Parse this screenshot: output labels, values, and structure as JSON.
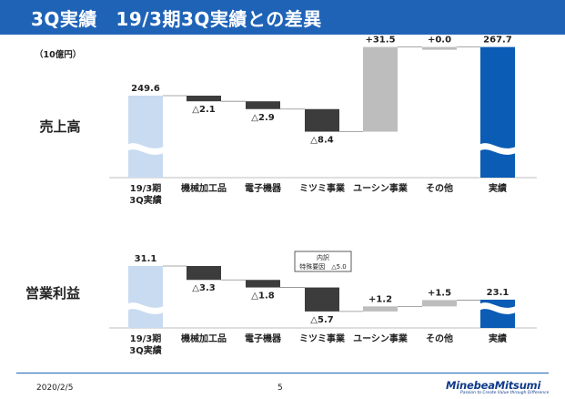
{
  "header": {
    "title": "3Q実績　19/3期3Q実績との差異"
  },
  "unit_label": "（10億円）",
  "footer": {
    "date": "2020/2/5",
    "page": "5"
  },
  "logo": {
    "name": "MinebeaMitsumi",
    "tagline": "Passion to Create Value through Difference"
  },
  "colors": {
    "title_bar": "#1f63b7",
    "base_bar": "#c9dbf1",
    "actual_bar": "#0a5cb5",
    "negative": "#3c3c3c",
    "positive": "#bdbdbd"
  },
  "chart_data": [
    {
      "type": "bar",
      "subtype": "waterfall",
      "row_label": "売上高",
      "categories": [
        "19/3期\n3Q実績",
        "機械加工品",
        "電子機器",
        "ミツミ事業",
        "ユーシン事業",
        "その他",
        "実績"
      ],
      "values": [
        249.6,
        -2.1,
        -2.9,
        -8.4,
        31.5,
        0.0,
        267.7
      ],
      "labels": [
        "249.6",
        "△2.1",
        "△2.9",
        "△8.4",
        "+31.5",
        "+0.0",
        "267.7"
      ],
      "axis_break": true
    },
    {
      "type": "bar",
      "subtype": "waterfall",
      "row_label": "営業利益",
      "categories": [
        "19/3期\n3Q実績",
        "機械加工品",
        "電子機器",
        "ミツミ事業",
        "ユーシン事業",
        "その他",
        "実績"
      ],
      "values": [
        31.1,
        -3.3,
        -1.8,
        -5.7,
        1.2,
        1.5,
        23.1
      ],
      "labels": [
        "31.1",
        "△3.3",
        "△1.8",
        "△5.7",
        "+1.2",
        "+1.5",
        "23.1"
      ],
      "axis_break": true,
      "annotation": {
        "title": "内訳",
        "text": "特殊要因　△5.0"
      }
    }
  ]
}
